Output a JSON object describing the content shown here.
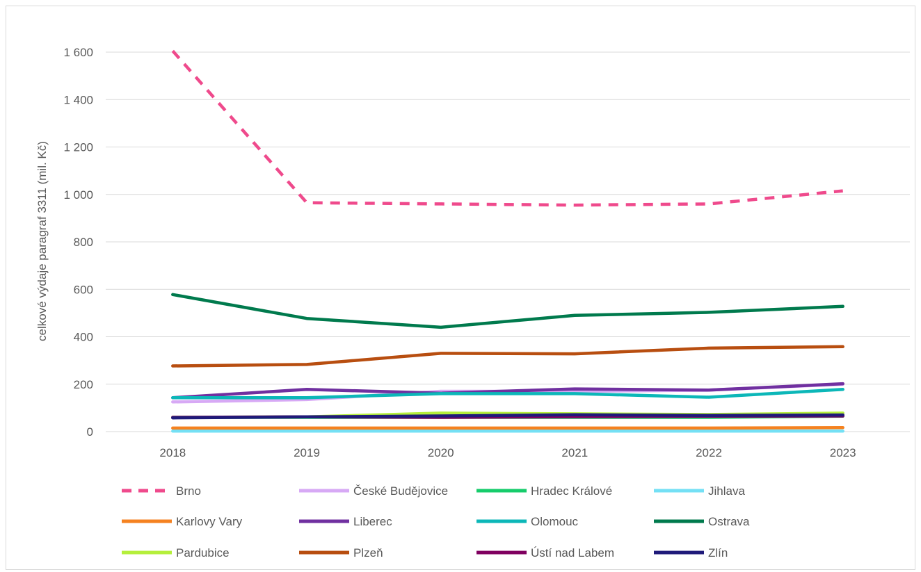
{
  "chart_data": {
    "type": "line",
    "ylabel": "celkové výdaje paragraf 3311 (mil. Kč)",
    "xlabel": "",
    "categories": [
      "2018",
      "2019",
      "2020",
      "2021",
      "2022",
      "2023"
    ],
    "ylim": [
      0,
      1600
    ],
    "yticks": [
      0,
      200,
      400,
      600,
      800,
      1000,
      1200,
      1400,
      1600
    ],
    "ytick_labels": [
      "0",
      "200",
      "400",
      "600",
      "800",
      "1 000",
      "1 200",
      "1 400",
      "1 600"
    ],
    "grid": true,
    "legend_position": "bottom",
    "series": [
      {
        "name": "Brno",
        "color": "#ef4a8c",
        "dashed": true,
        "values": [
          1605,
          965,
          960,
          955,
          960,
          1015
        ]
      },
      {
        "name": "České Budějovice",
        "color": "#d7a9f5",
        "dashed": false,
        "values": [
          125,
          135,
          170,
          170,
          175,
          200
        ]
      },
      {
        "name": "Hradec Králové",
        "color": "#16cc6b",
        "dashed": false,
        "values": [
          60,
          60,
          60,
          60,
          60,
          65
        ]
      },
      {
        "name": "Jihlava",
        "color": "#74e0f5",
        "dashed": false,
        "values": [
          2,
          2,
          2,
          2,
          2,
          2
        ]
      },
      {
        "name": "Karlovy Vary",
        "color": "#f58220",
        "dashed": false,
        "values": [
          15,
          15,
          15,
          15,
          15,
          17
        ]
      },
      {
        "name": "Liberec",
        "color": "#7030a0",
        "dashed": false,
        "values": [
          143,
          178,
          162,
          180,
          175,
          202
        ]
      },
      {
        "name": "Olomouc",
        "color": "#0cb7b8",
        "dashed": false,
        "values": [
          143,
          143,
          160,
          160,
          145,
          178
        ]
      },
      {
        "name": "Ostrava",
        "color": "#007a4d",
        "dashed": false,
        "values": [
          578,
          477,
          440,
          490,
          503,
          528
        ]
      },
      {
        "name": "Pardubice",
        "color": "#b5ef3c",
        "dashed": false,
        "values": [
          60,
          62,
          78,
          75,
          72,
          78
        ]
      },
      {
        "name": "Plzeň",
        "color": "#b84e10",
        "dashed": false,
        "values": [
          277,
          283,
          330,
          328,
          352,
          358
        ]
      },
      {
        "name": "Ústí nad Labem",
        "color": "#800060",
        "dashed": false,
        "values": [
          60,
          62,
          60,
          63,
          65,
          66
        ]
      },
      {
        "name": "Zlín",
        "color": "#1f1a7a",
        "dashed": false,
        "values": [
          58,
          62,
          66,
          71,
          68,
          70
        ]
      }
    ]
  }
}
